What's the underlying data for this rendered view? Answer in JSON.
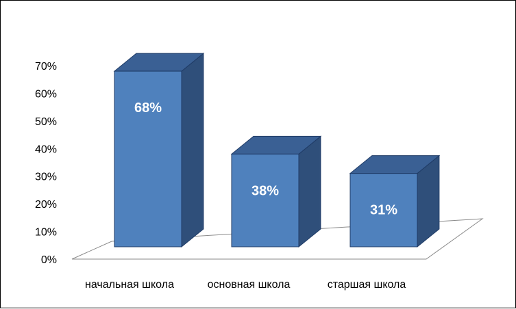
{
  "chart_data": {
    "type": "bar",
    "style": "3d-column",
    "categories": [
      "начальная школа",
      "основная школа",
      "старшая школа"
    ],
    "values": [
      68,
      38,
      31
    ],
    "data_labels": [
      "68%",
      "38%",
      "31%"
    ],
    "ylim": [
      0,
      70
    ],
    "y_tick_step": 10,
    "y_tick_labels": [
      "0%",
      "10%",
      "20%",
      "30%",
      "40%",
      "50%",
      "60%",
      "70%"
    ],
    "title": "",
    "xlabel": "",
    "ylabel": "",
    "grid": false,
    "legend": "none",
    "colors": {
      "bar_front": "#4f81bd",
      "bar_top": "#3a6094",
      "bar_side": "#2f4f7a",
      "bar_edge": "#1f3b66",
      "floor_line": "#8a8a8a"
    }
  }
}
